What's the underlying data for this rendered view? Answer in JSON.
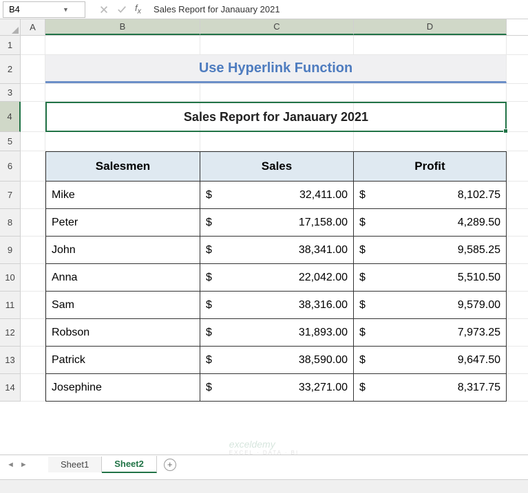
{
  "name_box": "B4",
  "formula_text": "Sales Report for Janauary 2021",
  "columns": {
    "A": "A",
    "B": "B",
    "C": "C",
    "D": "D"
  },
  "row_nums": [
    "1",
    "2",
    "3",
    "4",
    "5",
    "6",
    "7",
    "8",
    "9",
    "10",
    "11",
    "12",
    "13",
    "14"
  ],
  "title": "Use Hyperlink Function",
  "subtitle": "Sales Report for Janauary 2021",
  "headers": {
    "salesmen": "Salesmen",
    "sales": "Sales",
    "profit": "Profit"
  },
  "rows": [
    {
      "name": "Mike",
      "sales": "32,411.00",
      "profit": "8,102.75"
    },
    {
      "name": "Peter",
      "sales": "17,158.00",
      "profit": "4,289.50"
    },
    {
      "name": "John",
      "sales": "38,341.00",
      "profit": "9,585.25"
    },
    {
      "name": "Anna",
      "sales": "22,042.00",
      "profit": "5,510.50"
    },
    {
      "name": "Sam",
      "sales": "38,316.00",
      "profit": "9,579.00"
    },
    {
      "name": "Robson",
      "sales": "31,893.00",
      "profit": "7,973.25"
    },
    {
      "name": "Patrick",
      "sales": "38,590.00",
      "profit": "9,647.50"
    },
    {
      "name": "Josephine",
      "sales": "33,271.00",
      "profit": "8,317.75"
    }
  ],
  "currency_symbol": "$",
  "tabs": {
    "sheet1": "Sheet1",
    "sheet2": "Sheet2"
  },
  "watermark": {
    "brand": "exceldemy",
    "tagline": "EXCEL · DATA · BI"
  },
  "colors": {
    "excel_green": "#217346",
    "title_bg": "#f0f0f2",
    "title_color": "#4e7cbf",
    "title_underline": "#6b8fc8",
    "header_bg": "#dfe9f1",
    "selected_col_bg": "#d0d8c8",
    "grid_line": "#e8e8e8",
    "table_border": "#333333"
  }
}
